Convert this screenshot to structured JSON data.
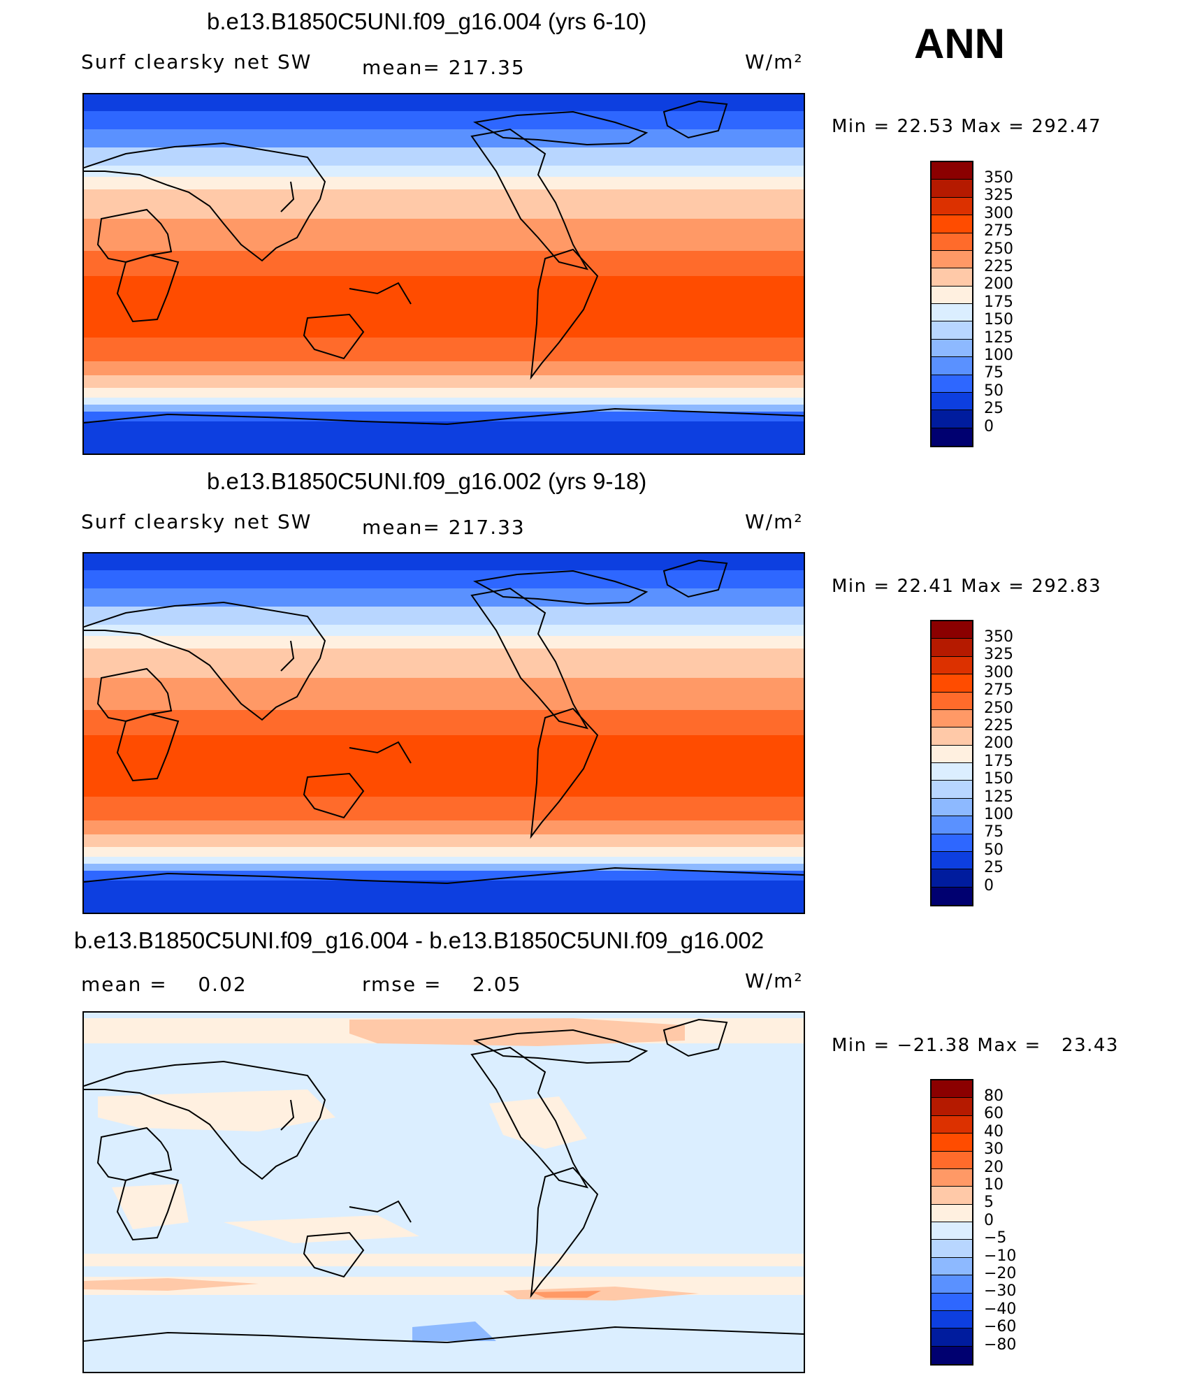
{
  "season": "ANN",
  "panels": [
    {
      "title": "b.e13.B1850C5UNI.f09_g16.004 (yrs 6-10)",
      "variable": "Surf clearsky net SW",
      "stat1": "mean= 217.35",
      "stat2": "",
      "units": "W/m²",
      "minmax": "Min =   22.53 Max = 292.47",
      "map_type": "absolute",
      "colorbar": {
        "labels": [
          "350",
          "325",
          "300",
          "275",
          "250",
          "225",
          "200",
          "175",
          "150",
          "125",
          "100",
          "75",
          "50",
          "25",
          "0"
        ],
        "colors": [
          "#8b0000",
          "#b51a00",
          "#dc3100",
          "#ff4c00",
          "#ff6b2b",
          "#ff9966",
          "#ffc9a8",
          "#fff0e0",
          "#dbeeff",
          "#b8d6ff",
          "#8db9ff",
          "#5a91ff",
          "#2e67ff",
          "#0d3fe0",
          "#001c9e",
          "#000070"
        ]
      }
    },
    {
      "title": "b.e13.B1850C5UNI.f09_g16.002 (yrs 9-18)",
      "variable": "Surf clearsky net SW",
      "stat1": "mean= 217.33",
      "stat2": "",
      "units": "W/m²",
      "minmax": "Min =   22.41 Max = 292.83",
      "map_type": "absolute",
      "colorbar": {
        "labels": [
          "350",
          "325",
          "300",
          "275",
          "250",
          "225",
          "200",
          "175",
          "150",
          "125",
          "100",
          "75",
          "50",
          "25",
          "0"
        ],
        "colors": [
          "#8b0000",
          "#b51a00",
          "#dc3100",
          "#ff4c00",
          "#ff6b2b",
          "#ff9966",
          "#ffc9a8",
          "#fff0e0",
          "#dbeeff",
          "#b8d6ff",
          "#8db9ff",
          "#5a91ff",
          "#2e67ff",
          "#0d3fe0",
          "#001c9e",
          "#000070"
        ]
      }
    },
    {
      "title": "b.e13.B1850C5UNI.f09_g16.004 - b.e13.B1850C5UNI.f09_g16.002",
      "variable": "mean =    0.02",
      "stat1": "rmse =    2.05",
      "stat2": "",
      "units": "W/m²",
      "minmax": "Min = −21.38 Max =   23.43",
      "map_type": "difference",
      "colorbar": {
        "labels": [
          "80",
          "60",
          "40",
          "30",
          "20",
          "10",
          "5",
          "0",
          "−5",
          "−10",
          "−20",
          "−30",
          "−40",
          "−60",
          "−80"
        ],
        "colors": [
          "#8b0000",
          "#b51a00",
          "#dc3100",
          "#ff4c00",
          "#ff6b2b",
          "#ff9966",
          "#ffc9a8",
          "#fff0e0",
          "#dbeeff",
          "#b8d6ff",
          "#8db9ff",
          "#5a91ff",
          "#2e67ff",
          "#0d3fe0",
          "#001c9e",
          "#000070"
        ]
      }
    }
  ]
}
